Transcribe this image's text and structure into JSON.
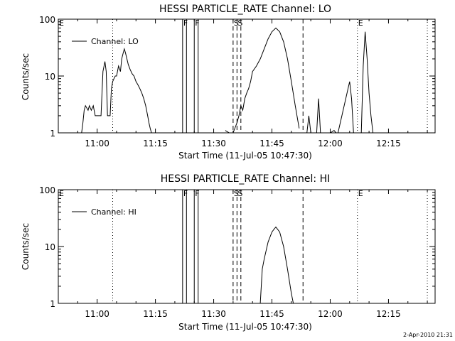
{
  "footer": {
    "timestamp": "2-Apr-2010 21:31"
  },
  "chart_data": [
    {
      "type": "line",
      "title": "HESSI PARTICLE_RATE Channel: LO",
      "xlabel": "Start Time (11-Jul-05 10:47:30)",
      "ylabel": "Counts/sec",
      "yscale": "log",
      "ylim": [
        1,
        100
      ],
      "xlim": [
        "10:50",
        "12:27"
      ],
      "x_ticks": [
        "11:00",
        "11:15",
        "11:30",
        "11:45",
        "12:00",
        "12:15"
      ],
      "y_ticks": [
        "1",
        "10",
        "100"
      ],
      "legend": {
        "label": "Channel: LO",
        "placement": "top-left"
      },
      "series": [
        {
          "name": "Channel: LO",
          "x": [
            "10:56:00",
            "10:56:20",
            "10:56:40",
            "10:57:00",
            "10:57:40",
            "10:58:00",
            "10:58:30",
            "10:59:00",
            "10:59:30",
            "11:00:00",
            "11:01:00",
            "11:01:30",
            "11:02:00",
            "11:02:20",
            "11:02:40",
            "11:03:00",
            "11:03:20",
            "11:03:40",
            "11:04:00",
            "11:04:20",
            "11:04:40",
            "11:05:00",
            "11:05:30",
            "11:06:00",
            "11:06:20",
            "11:06:40",
            "11:07:00",
            "11:07:20",
            "11:07:40",
            "11:08:00",
            "11:08:30",
            "11:09:00",
            "11:09:30",
            "11:10:00",
            "11:10:30",
            "11:11:00",
            "11:11:30",
            "11:12:00",
            "11:12:30",
            "11:13:00",
            "11:13:20",
            "11:13:40",
            "11:14:00"
          ],
          "y": [
            1,
            1.5,
            2.5,
            3,
            2.5,
            3,
            2.5,
            3,
            2,
            2,
            2,
            12,
            18,
            12,
            2,
            2,
            2,
            6,
            8,
            9,
            10,
            10,
            15,
            12,
            20,
            25,
            30,
            25,
            20,
            16,
            13,
            11,
            10,
            8,
            7,
            6,
            5,
            4,
            3,
            2,
            1.5,
            1.2,
            1
          ]
        },
        {
          "name": "Channel: LO",
          "x": [
            "11:33:00",
            "11:34:00",
            "11:35:00",
            "11:36:00",
            "11:36:30",
            "11:37:00",
            "11:37:30",
            "11:38:00",
            "11:38:30",
            "11:39:00",
            "11:39:30",
            "11:40:00",
            "11:41:00",
            "11:42:00",
            "11:43:00",
            "11:44:00",
            "11:45:00",
            "11:46:00",
            "11:47:00",
            "11:48:00",
            "11:49:00",
            "11:50:00",
            "11:51:00",
            "11:52:00"
          ],
          "y": [
            1.1,
            1,
            1,
            1.5,
            2,
            3,
            2.5,
            4,
            5,
            6,
            8,
            12,
            15,
            20,
            30,
            45,
            60,
            70,
            60,
            40,
            20,
            8,
            3,
            1.2
          ]
        },
        {
          "name": "Channel: LO",
          "x": [
            "11:54:00",
            "11:54:30",
            "11:55:00",
            "11:56:30",
            "11:57:00",
            "11:57:30",
            "11:58:00",
            "12:00:00",
            "12:01:00",
            "12:01:30",
            "12:02:00",
            "12:03:00",
            "12:05:00",
            "12:05:30",
            "12:06:00",
            "12:06:30",
            "12:07:00",
            "12:08:00",
            "12:08:30",
            "12:09:00",
            "12:09:30",
            "12:10:00",
            "12:10:30",
            "12:11:00"
          ],
          "y": [
            1,
            2,
            1,
            1,
            4,
            1,
            1,
            1,
            1.1,
            1,
            1,
            2,
            8,
            4,
            1,
            1,
            1,
            1,
            15,
            60,
            20,
            5,
            2,
            1
          ]
        }
      ],
      "vertical_markers": [
        {
          "time": "11:04:00",
          "style": "dotted"
        },
        {
          "time": "11:22:00",
          "style": "solid",
          "label": "F"
        },
        {
          "time": "11:23:00",
          "style": "solid"
        },
        {
          "time": "11:25:00",
          "style": "solid",
          "label": "F"
        },
        {
          "time": "11:26:00",
          "style": "solid"
        },
        {
          "time": "11:35:00",
          "style": "dashed",
          "label": "S"
        },
        {
          "time": "11:36:00",
          "style": "dashed",
          "label": "S"
        },
        {
          "time": "11:37:00",
          "style": "dashed"
        },
        {
          "time": "11:53:00",
          "style": "dashed"
        },
        {
          "time": "12:07:00",
          "style": "dotted",
          "label": "E"
        },
        {
          "time": "12:25:00",
          "style": "dotted"
        }
      ],
      "edge_labels": [
        {
          "label": "E",
          "side": "left"
        }
      ]
    },
    {
      "type": "line",
      "title": "HESSI PARTICLE_RATE Channel: HI",
      "xlabel": "Start Time (11-Jul-05 10:47:30)",
      "ylabel": "Counts/sec",
      "yscale": "log",
      "ylim": [
        1,
        100
      ],
      "xlim": [
        "10:50",
        "12:27"
      ],
      "x_ticks": [
        "11:00",
        "11:15",
        "11:30",
        "11:45",
        "12:00",
        "12:15"
      ],
      "y_ticks": [
        "1",
        "10",
        "100"
      ],
      "legend": {
        "label": "Channel: HI",
        "placement": "top-left"
      },
      "series": [
        {
          "name": "Channel: HI",
          "x": [
            "11:42:00",
            "11:42:30",
            "11:43:00",
            "11:44:00",
            "11:45:00",
            "11:45:30",
            "11:46:00",
            "11:47:00",
            "11:48:00",
            "11:49:00",
            "11:50:00",
            "11:50:30"
          ],
          "y": [
            1,
            4,
            6,
            12,
            18,
            20,
            22,
            18,
            10,
            4,
            1.5,
            1
          ]
        }
      ],
      "vertical_markers": [
        {
          "time": "11:04:00",
          "style": "dotted"
        },
        {
          "time": "11:22:00",
          "style": "solid",
          "label": "F"
        },
        {
          "time": "11:23:00",
          "style": "solid"
        },
        {
          "time": "11:25:00",
          "style": "solid",
          "label": "F"
        },
        {
          "time": "11:26:00",
          "style": "solid"
        },
        {
          "time": "11:35:00",
          "style": "dashed",
          "label": "S"
        },
        {
          "time": "11:36:00",
          "style": "dashed",
          "label": "S"
        },
        {
          "time": "11:37:00",
          "style": "dashed"
        },
        {
          "time": "11:53:00",
          "style": "dashed"
        },
        {
          "time": "12:07:00",
          "style": "dotted",
          "label": "E"
        },
        {
          "time": "12:25:00",
          "style": "dotted"
        }
      ],
      "edge_labels": [
        {
          "label": "E",
          "side": "left"
        }
      ]
    }
  ]
}
